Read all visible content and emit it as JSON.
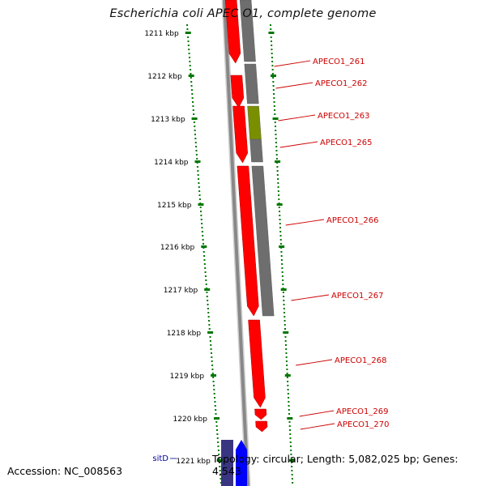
{
  "title": "Escherichia coli APEC O1, complete genome",
  "footer": {
    "accession": "Accession: NC_008563",
    "summary": "Topology: circular; Length: 5,082,025 bp; Genes: 4,543"
  },
  "colors": {
    "backbone": "#888888",
    "forward_feature": "#ff0000",
    "reverse_feature": "#6e6e6e",
    "highlight_feature": "#7a8f00",
    "gene_label": "#cc0000",
    "ruler": "#007700",
    "sit_dark": "#3a3580",
    "sit_blue": "#0000ff"
  },
  "ruler": {
    "unit": "kbp",
    "ticks": [
      {
        "label": "1211 kbp"
      },
      {
        "label": "1212 kbp"
      },
      {
        "label": "1213 kbp"
      },
      {
        "label": "1214 kbp"
      },
      {
        "label": "1215 kbp"
      },
      {
        "label": "1216 kbp"
      },
      {
        "label": "1217 kbp"
      },
      {
        "label": "1218 kbp"
      },
      {
        "label": "1219 kbp"
      },
      {
        "label": "1220 kbp"
      },
      {
        "label": "1221 kbp"
      }
    ]
  },
  "genes": [
    {
      "label": "APECO1_261"
    },
    {
      "label": "APECO1_262"
    },
    {
      "label": "APECO1_263"
    },
    {
      "label": "APECO1_265"
    },
    {
      "label": "APECO1_266"
    },
    {
      "label": "APECO1_267"
    },
    {
      "label": "APECO1_268"
    },
    {
      "label": "APECO1_269"
    },
    {
      "label": "APECO1_270"
    },
    {
      "label": "sitD"
    }
  ]
}
